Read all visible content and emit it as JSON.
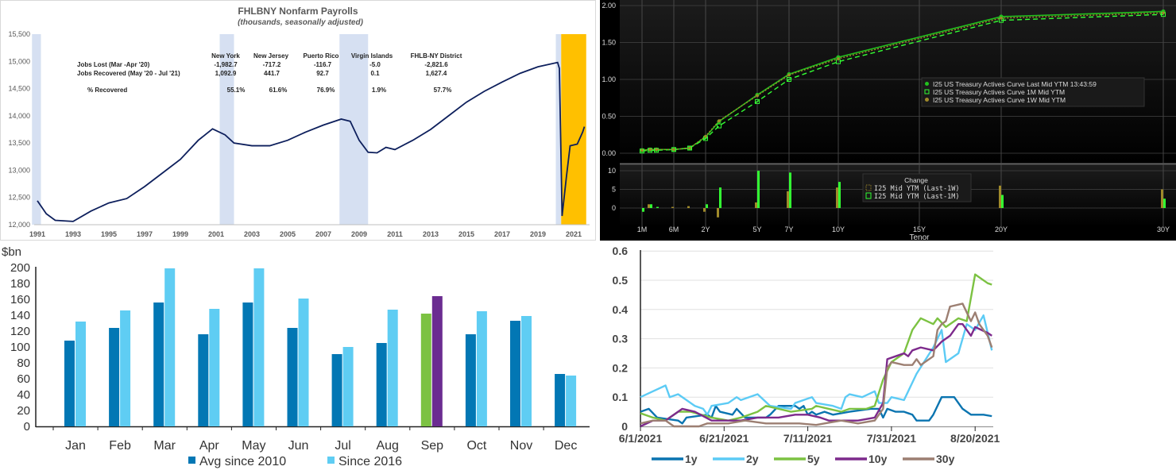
{
  "chart_data": [
    {
      "type": "line",
      "title": "FHLBNY Nonfarm Payrolls",
      "subtitle": "(thousands, seasonally adjusted)",
      "ylim": [
        12000,
        15500
      ],
      "yticks": [
        "15,500",
        "15,000",
        "14,500",
        "14,000",
        "13,500",
        "13,000",
        "12,500",
        "12,000"
      ],
      "ytick_values": [
        15500,
        15000,
        14500,
        14000,
        13500,
        13000,
        12500,
        12000
      ],
      "xticks": [
        "1991",
        "1993",
        "1995",
        "1997",
        "1999",
        "2001",
        "2003",
        "2005",
        "2007",
        "2009",
        "2011",
        "2013",
        "2015",
        "2017",
        "2019",
        "2021"
      ],
      "colors": {
        "line": "#0d1f5c",
        "recession": "#d6e0f2",
        "highlight": "#ffc000"
      },
      "recessions": [
        [
          1990.7,
          1991.2
        ],
        [
          2001.2,
          2002.0
        ],
        [
          2007.9,
          2009.5
        ],
        [
          2020.0,
          2020.3
        ]
      ],
      "highlight": [
        2020.3,
        2021.7
      ],
      "series": {
        "x": [
          1991.0,
          1991.5,
          1992,
          1993,
          1994,
          1995,
          1996,
          1997,
          1998,
          1999,
          2000,
          2000.8,
          2001.5,
          2002,
          2003,
          2004,
          2005,
          2006,
          2007,
          2008,
          2008.5,
          2009,
          2009.5,
          2010,
          2010.5,
          2011,
          2012,
          2013,
          2014,
          2015,
          2016,
          2017,
          2018,
          2019,
          2020.1,
          2020.2,
          2020.35,
          2020.6,
          2020.8,
          2021.2,
          2021.5,
          2021.6
        ],
        "y": [
          12440,
          12200,
          12080,
          12060,
          12250,
          12400,
          12480,
          12700,
          12950,
          13200,
          13550,
          13760,
          13650,
          13500,
          13450,
          13450,
          13550,
          13700,
          13830,
          13940,
          13900,
          13550,
          13330,
          13320,
          13420,
          13380,
          13550,
          13750,
          14000,
          14250,
          14450,
          14620,
          14780,
          14900,
          14980,
          14870,
          12160,
          12900,
          13450,
          13480,
          13700,
          13800
        ]
      },
      "table": {
        "columns": [
          "New York",
          "New Jersey",
          "Puerto Rico",
          "Virgin Islands",
          "FHLB-NY District"
        ],
        "rows": [
          {
            "label": "Jobs Lost (Mar -Apr '20)",
            "values": [
              "-1,982.7",
              "-717.2",
              "-116.7",
              "-5.0",
              "-2,821.6"
            ]
          },
          {
            "label": "Jobs Recovered (May  '20 - Jul '21)",
            "values": [
              "1,092.9",
              "441.7",
              "92.7",
              "0.1",
              "1,627.4"
            ]
          },
          {
            "label": "% Recovered",
            "values": [
              "55.1%",
              "61.6%",
              "76.9%",
              "1.9%",
              "57.7%"
            ]
          }
        ]
      }
    },
    {
      "type": "line",
      "title": "",
      "xlabel": "Tenor",
      "yticks": [
        "2.00",
        "1.50",
        "1.00",
        "0.50",
        "0.00"
      ],
      "ytick_values": [
        2,
        1.5,
        1,
        0.5,
        0
      ],
      "ylim": [
        0,
        2
      ],
      "xticks": [
        "1M",
        "6M",
        "2Y",
        "5Y",
        "7Y",
        "10Y",
        "15Y",
        "20Y",
        "30Y"
      ],
      "tenors": [
        "1M",
        "2M",
        "3M",
        "6M",
        "1Y",
        "2Y",
        "3Y",
        "5Y",
        "7Y",
        "10Y",
        "20Y",
        "30Y"
      ],
      "legend": [
        "I25 US Treasury Actives Curve Last Mid YTM 13:43:59",
        "I25 US Treasury Actives Curve 1M Mid YTM",
        "I25 US Treasury Actives Curve 1W Mid YTM"
      ],
      "series": [
        {
          "name": "Last",
          "color": "#22c11e",
          "values": [
            0.04,
            0.05,
            0.05,
            0.05,
            0.07,
            0.22,
            0.43,
            0.79,
            1.07,
            1.3,
            1.85,
            1.92
          ]
        },
        {
          "name": "1M",
          "color": "#33ff33",
          "values": [
            0.03,
            0.04,
            0.04,
            0.05,
            0.07,
            0.2,
            0.37,
            0.7,
            1.0,
            1.24,
            1.8,
            1.88
          ]
        },
        {
          "name": "1W",
          "color": "#a08a2a",
          "values": [
            0.04,
            0.05,
            0.05,
            0.05,
            0.07,
            0.23,
            0.44,
            0.78,
            1.06,
            1.28,
            1.83,
            1.9
          ]
        }
      ],
      "change": {
        "title": "Change",
        "yticks": [
          "10",
          "5",
          "0"
        ],
        "ytick_values": [
          10,
          5,
          0
        ],
        "legend": [
          "I25 Mid YTM (Last-1W)",
          "I25 Mid YTM (Last-1M)"
        ],
        "colors": [
          "#a08a2a",
          "#33ff33"
        ],
        "last_1w": [
          0,
          1,
          0,
          0.3,
          0.5,
          -1,
          -2.5,
          1.5,
          4.5,
          5.5,
          6,
          5
        ],
        "last_1m": [
          -1,
          1,
          0.3,
          0,
          0,
          1,
          5.5,
          10,
          9.5,
          7,
          3.5,
          2.5
        ]
      }
    },
    {
      "type": "bar",
      "ylabel": "$bn",
      "ylim": [
        0,
        200
      ],
      "yticks": [
        "200",
        "180",
        "160",
        "140",
        "120",
        "100",
        "80",
        "60",
        "40",
        "20",
        "0"
      ],
      "ytick_values": [
        200,
        180,
        160,
        140,
        120,
        100,
        80,
        60,
        40,
        20,
        0
      ],
      "categories": [
        "Jan",
        "Feb",
        "Mar",
        "Apr",
        "May",
        "Jun",
        "Jul",
        "Aug",
        "Sep",
        "Oct",
        "Nov",
        "Dec"
      ],
      "series": [
        {
          "name": "Avg since 2010",
          "color": "#0277b4",
          "values": [
            108,
            124,
            156,
            116,
            156,
            124,
            91,
            105,
            142,
            116,
            133,
            66
          ]
        },
        {
          "name": "Since 2016",
          "color": "#5fcdf3",
          "values": [
            132,
            146,
            199,
            148,
            199,
            161,
            100,
            147,
            164,
            145,
            139,
            64
          ]
        }
      ],
      "highlight_colors": {
        "Sep": [
          "#7cc242",
          "#6b2c91"
        ]
      }
    },
    {
      "type": "line",
      "ylim": [
        0,
        0.6
      ],
      "yticks": [
        "0.6",
        "0.5",
        "0.4",
        "0.3",
        "0.2",
        "0.1",
        "0"
      ],
      "ytick_values": [
        0.6,
        0.5,
        0.4,
        0.3,
        0.2,
        0.1,
        0
      ],
      "xticks": [
        "6/1/2021",
        "6/21/2021",
        "7/11/2021",
        "7/31/2021",
        "8/20/2021"
      ],
      "xtick_days": [
        0,
        20,
        40,
        60,
        80
      ],
      "x_unit": "days since 6/1/2021",
      "series": [
        {
          "name": "1y",
          "color": "#0a74b0",
          "x": [
            0,
            2,
            4,
            9,
            10,
            11,
            16,
            17,
            18,
            19,
            22,
            23,
            25,
            30,
            31,
            33,
            37,
            38,
            39,
            40,
            41,
            42,
            44,
            46,
            50,
            55,
            57,
            58,
            59,
            61,
            63,
            65,
            66,
            69,
            70,
            72,
            75,
            77,
            79,
            82,
            84
          ],
          "y": [
            0.05,
            0.06,
            0.03,
            0.02,
            0.01,
            0.03,
            0.04,
            0.03,
            0.07,
            0.05,
            0.04,
            0.06,
            0.03,
            0.03,
            0.04,
            0.07,
            0.07,
            0.06,
            0.07,
            0.04,
            0.05,
            0.04,
            0.05,
            0.04,
            0.05,
            0.06,
            0.06,
            0.03,
            0.06,
            0.05,
            0.05,
            0.04,
            0.02,
            0.02,
            0.04,
            0.1,
            0.1,
            0.06,
            0.04,
            0.04,
            0.035
          ]
        },
        {
          "name": "2y",
          "color": "#5ccbf5",
          "x": [
            0,
            3,
            6,
            7,
            9,
            13,
            15,
            16,
            17,
            21,
            23,
            24,
            28,
            31,
            36,
            37,
            41,
            42,
            46,
            48,
            49,
            50,
            53,
            56,
            57,
            59,
            60,
            63,
            64,
            66,
            70,
            72,
            73,
            76,
            78,
            80,
            82,
            84
          ],
          "y": [
            0.1,
            0.12,
            0.14,
            0.1,
            0.11,
            0.07,
            0.06,
            0.04,
            0.07,
            0.08,
            0.1,
            0.09,
            0.11,
            0.07,
            0.06,
            0.08,
            0.1,
            0.08,
            0.07,
            0.06,
            0.1,
            0.11,
            0.1,
            0.12,
            0.08,
            0.08,
            0.1,
            0.09,
            0.12,
            0.18,
            0.27,
            0.33,
            0.22,
            0.25,
            0.35,
            0.33,
            0.38,
            0.26
          ]
        },
        {
          "name": "5y",
          "color": "#7cc242",
          "x": [
            0,
            3,
            6,
            9,
            12,
            17,
            21,
            24,
            28,
            30,
            36,
            41,
            42,
            45,
            48,
            50,
            54,
            56,
            58,
            60,
            63,
            65,
            67,
            70,
            71,
            73,
            76,
            78,
            80,
            83,
            84
          ],
          "y": [
            0.045,
            0.03,
            0.02,
            0.05,
            0.05,
            0.03,
            0.02,
            0.03,
            0.05,
            0.07,
            0.05,
            0.06,
            0.07,
            0.06,
            0.05,
            0.06,
            0.06,
            0.07,
            0.16,
            0.22,
            0.25,
            0.33,
            0.37,
            0.35,
            0.37,
            0.34,
            0.37,
            0.36,
            0.52,
            0.49,
            0.485
          ]
        },
        {
          "name": "10y",
          "color": "#7d2a8c",
          "x": [
            0,
            3,
            6,
            8,
            10,
            13,
            17,
            20,
            24,
            28,
            33,
            37,
            40,
            43,
            45,
            48,
            52,
            56,
            58,
            59,
            61,
            63,
            64,
            65,
            67,
            70,
            72,
            74,
            76,
            77,
            79,
            80,
            83,
            84
          ],
          "y": [
            0,
            0.02,
            0.02,
            0.04,
            0.06,
            0.05,
            0.02,
            0.02,
            0.02,
            0.03,
            0.03,
            0.04,
            0.04,
            0.03,
            0.02,
            0.02,
            0.02,
            0.03,
            0.08,
            0.23,
            0.24,
            0.25,
            0.24,
            0.26,
            0.27,
            0.26,
            0.29,
            0.31,
            0.35,
            0.35,
            0.31,
            0.34,
            0.32,
            0.31
          ]
        },
        {
          "name": "30y",
          "color": "#9c7f72",
          "x": [
            0,
            3,
            6,
            8,
            14,
            16,
            21,
            25,
            30,
            35,
            38,
            42,
            44,
            48,
            52,
            56,
            58,
            59,
            60,
            63,
            65,
            66,
            67,
            70,
            71,
            72,
            73,
            74,
            77,
            79,
            80,
            81,
            83,
            84
          ],
          "y": [
            0.01,
            0.02,
            0.02,
            0,
            0,
            0.01,
            0.01,
            0.02,
            0.01,
            0.01,
            0.01,
            0.005,
            0.01,
            0.02,
            0.01,
            0.02,
            0.06,
            0.2,
            0.22,
            0.21,
            0.21,
            0.23,
            0.21,
            0.24,
            0.33,
            0.35,
            0.36,
            0.41,
            0.42,
            0.36,
            0.39,
            0.35,
            0.31,
            0.27
          ]
        }
      ]
    }
  ]
}
